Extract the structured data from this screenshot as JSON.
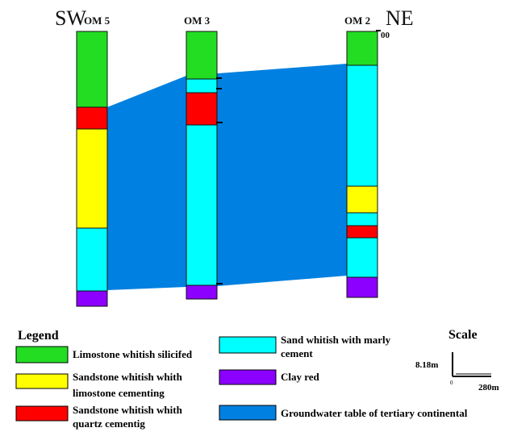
{
  "direction": {
    "left": "SW",
    "right": "NE"
  },
  "top_marker": "00",
  "colors": {
    "limestone": "#22dd22",
    "sandstone_limestone": "#ffff00",
    "sandstone_quartz": "#ff0000",
    "sand": "#00ffff",
    "clay": "#8b00ff",
    "groundwater": "#0080e0"
  },
  "wells": [
    {
      "name": "OM 5",
      "layers": [
        {
          "unit": "limestone",
          "from_depth": 0,
          "to_depth": 94
        },
        {
          "unit": "sandstone_quartz",
          "from_depth": 94,
          "to_depth": 121
        },
        {
          "unit": "sandstone_limestone",
          "from_depth": 121,
          "to_depth": 244
        },
        {
          "unit": "sand",
          "from_depth": 244,
          "to_depth": 322
        },
        {
          "unit": "clay",
          "from_depth": 322,
          "to_depth": 341
        }
      ]
    },
    {
      "name": "OM 3",
      "layers": [
        {
          "unit": "limestone",
          "from_depth": 0,
          "to_depth": 59
        },
        {
          "unit": "sand",
          "from_depth": 59,
          "to_depth": 76
        },
        {
          "unit": "sandstone_quartz",
          "from_depth": 76,
          "to_depth": 116
        },
        {
          "unit": "sand",
          "from_depth": 116,
          "to_depth": 315
        },
        {
          "unit": "clay",
          "from_depth": 315,
          "to_depth": 332
        }
      ]
    },
    {
      "name": "OM 2",
      "layers": [
        {
          "unit": "limestone",
          "from_depth": 0,
          "to_depth": 42
        },
        {
          "unit": "sand",
          "from_depth": 42,
          "to_depth": 192
        },
        {
          "unit": "sandstone_limestone",
          "from_depth": 192,
          "to_depth": 225
        },
        {
          "unit": "sand",
          "from_depth": 225,
          "to_depth": 241
        },
        {
          "unit": "sandstone_quartz",
          "from_depth": 241,
          "to_depth": 256
        },
        {
          "unit": "sand",
          "from_depth": 256,
          "to_depth": 305
        },
        {
          "unit": "clay",
          "from_depth": 305,
          "to_depth": 330
        }
      ]
    }
  ],
  "legend": {
    "title": "Legend",
    "items": {
      "limestone": "Limostone whitish silicifed",
      "sandstone_limestone": [
        "Sandstone whitish whith",
        "limostone cementing"
      ],
      "sandstone_quartz": [
        "Sandstone whitish whith",
        "quartz cementig"
      ],
      "sand": [
        "Sand whitish with marly",
        "cement"
      ],
      "clay": "Clay red",
      "groundwater": "Groundwater table of tertiary continental"
    }
  },
  "scale": {
    "title": "Scale",
    "vertical": "8.18m",
    "horizontal": "280m",
    "origin": "0"
  }
}
